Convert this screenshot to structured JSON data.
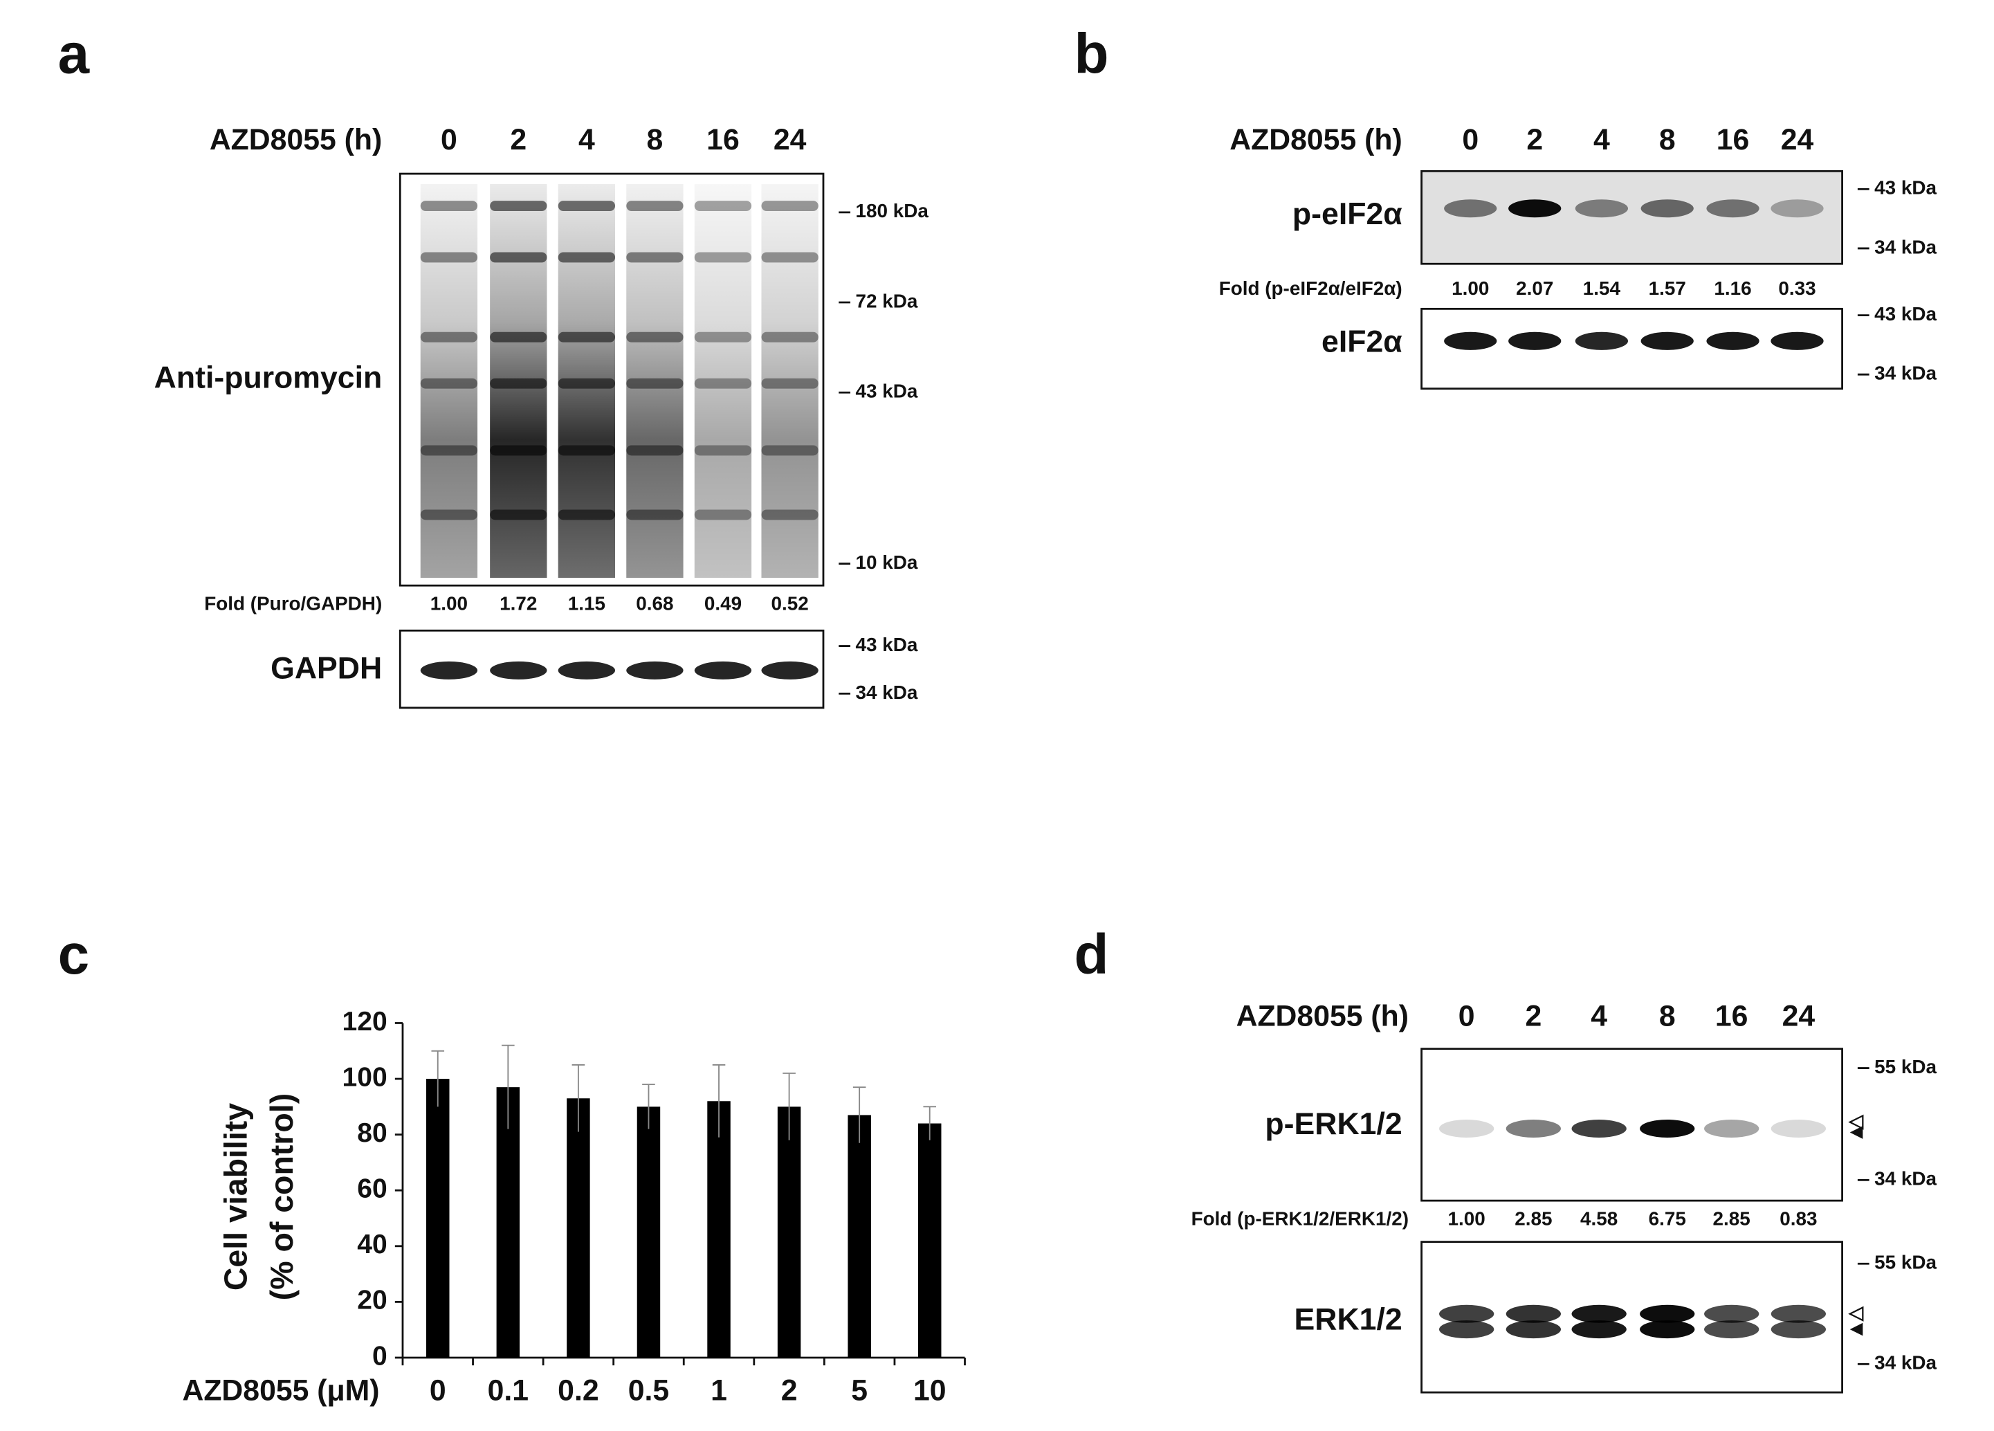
{
  "panel_a": {
    "letter": "a",
    "treatment": "AZD8055 (h)",
    "lanes": [
      "0",
      "2",
      "4",
      "8",
      "16",
      "24"
    ],
    "blots": [
      {
        "label": "Anti-puromycin",
        "markers": [
          "180 kDa",
          "72 kDa",
          "43 kDa",
          "10 kDa"
        ]
      },
      {
        "label": "GAPDH",
        "markers": [
          "43 kDa",
          "34 kDa"
        ]
      }
    ],
    "fold": {
      "label": "Fold (Puro/GAPDH)",
      "values": [
        "1.00",
        "1.72",
        "1.15",
        "0.68",
        "0.49",
        "0.52"
      ]
    }
  },
  "panel_b": {
    "letter": "b",
    "treatment": "AZD8055 (h)",
    "lanes": [
      "0",
      "2",
      "4",
      "8",
      "16",
      "24"
    ],
    "blots": [
      {
        "label": "p-eIF2α",
        "markers": [
          "43 kDa",
          "34 kDa"
        ]
      },
      {
        "label": "eIF2α",
        "markers": [
          "43 kDa",
          "34 kDa"
        ]
      }
    ],
    "fold": {
      "label": "Fold (p-eIF2α/eIF2α)",
      "values": [
        "1.00",
        "2.07",
        "1.54",
        "1.57",
        "1.16",
        "0.33"
      ]
    }
  },
  "panel_d": {
    "letter": "d",
    "treatment": "AZD8055 (h)",
    "lanes": [
      "0",
      "2",
      "4",
      "8",
      "16",
      "24"
    ],
    "blots": [
      {
        "label": "p-ERK1/2",
        "markers": [
          "55 kDa",
          "34 kDa"
        ]
      },
      {
        "label": "ERK1/2",
        "markers": [
          "55 kDa",
          "34 kDa"
        ]
      }
    ],
    "fold": {
      "label": "Fold (p-ERK1/2/ERK1/2)",
      "values": [
        "1.00",
        "2.85",
        "4.58",
        "6.75",
        "2.85",
        "0.83"
      ]
    }
  },
  "chart_data": {
    "type": "bar",
    "panel_label": "c",
    "y_label": [
      "Cell viability",
      "(% of control)"
    ],
    "x_label": "AZD8055 (μM)",
    "categories": [
      "0",
      "0.1",
      "0.2",
      "0.5",
      "1",
      "2",
      "5",
      "10"
    ],
    "values": [
      100,
      97,
      93,
      90,
      92,
      90,
      87,
      84
    ],
    "errors": [
      10,
      15,
      12,
      8,
      13,
      12,
      10,
      6
    ],
    "color": "#000000",
    "ylim": [
      0,
      120
    ],
    "yticks": [
      0,
      20,
      40,
      60,
      80,
      100,
      120
    ]
  }
}
